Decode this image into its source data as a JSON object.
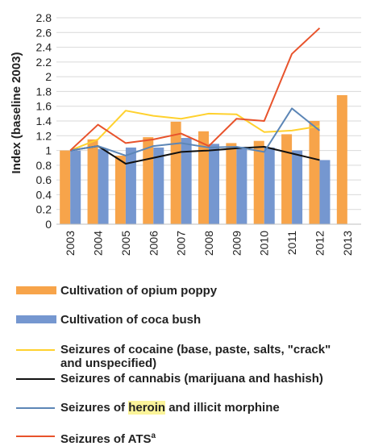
{
  "chart_data": {
    "type": "bar",
    "ylabel": "Index (baseline 2003)",
    "ylim": [
      0,
      2.8
    ],
    "ytick_step": 0.2,
    "yticks": [
      "0",
      "0.2",
      "0.4",
      "0.6",
      "0.8",
      "1",
      "1.2",
      "1.4",
      "1.6",
      "1.8",
      "2",
      "2.2",
      "2.4",
      "2.6",
      "2.8"
    ],
    "categories": [
      "2003",
      "2004",
      "2005",
      "2006",
      "2007",
      "2008",
      "2009",
      "2010",
      "2011",
      "2012",
      "2013"
    ],
    "grid": true,
    "bar_series": [
      {
        "name": "Cultivation of opium poppy",
        "color": "#f7a44a",
        "values": [
          1.0,
          1.15,
          0.93,
          1.18,
          1.39,
          1.26,
          1.1,
          1.13,
          1.22,
          1.4,
          1.75
        ]
      },
      {
        "name": "Cultivation of coca bush",
        "color": "#7597d0",
        "values": [
          1.0,
          1.02,
          1.04,
          1.04,
          1.17,
          1.09,
          1.05,
          1.04,
          1.0,
          0.87,
          null
        ]
      }
    ],
    "line_series": [
      {
        "name": "Seizures of cocaine (base, paste, salts, \"crack\" and unspecified)",
        "color": "#ffd12e",
        "values": [
          1.0,
          1.15,
          1.54,
          1.47,
          1.43,
          1.5,
          1.49,
          1.25,
          1.27,
          1.33,
          null
        ]
      },
      {
        "name": "Seizures of cannabis (marijuana and hashish)",
        "color": "#111111",
        "values": [
          1.0,
          1.06,
          0.82,
          0.9,
          0.98,
          1.0,
          1.03,
          1.05,
          0.96,
          0.87,
          null
        ]
      },
      {
        "name": "Seizures of heroin and illicit morphine",
        "color": "#5c86b6",
        "values": [
          1.0,
          1.06,
          0.93,
          1.06,
          1.1,
          1.04,
          1.05,
          0.98,
          1.57,
          1.27,
          null
        ]
      },
      {
        "name": "Seizures of ATS",
        "color": "#e8532c",
        "values": [
          1.0,
          1.35,
          1.1,
          1.15,
          1.23,
          1.06,
          1.43,
          1.4,
          2.31,
          2.66,
          null
        ]
      }
    ]
  },
  "legend": {
    "opium": "Cultivation of opium poppy",
    "coca": "Cultivation of coca bush",
    "cocaine_line1": "Seizures of cocaine (base, paste, salts, \"crack\"",
    "cocaine_line2": "and unspecified)",
    "cannabis": "Seizures of cannabis (marijuana and hashish)",
    "heroin_pre": "Seizures of ",
    "heroin_hl": "heroin",
    "heroin_post": " and illicit morphine",
    "ats": "Seizures of ATS",
    "ats_sup": "a"
  }
}
